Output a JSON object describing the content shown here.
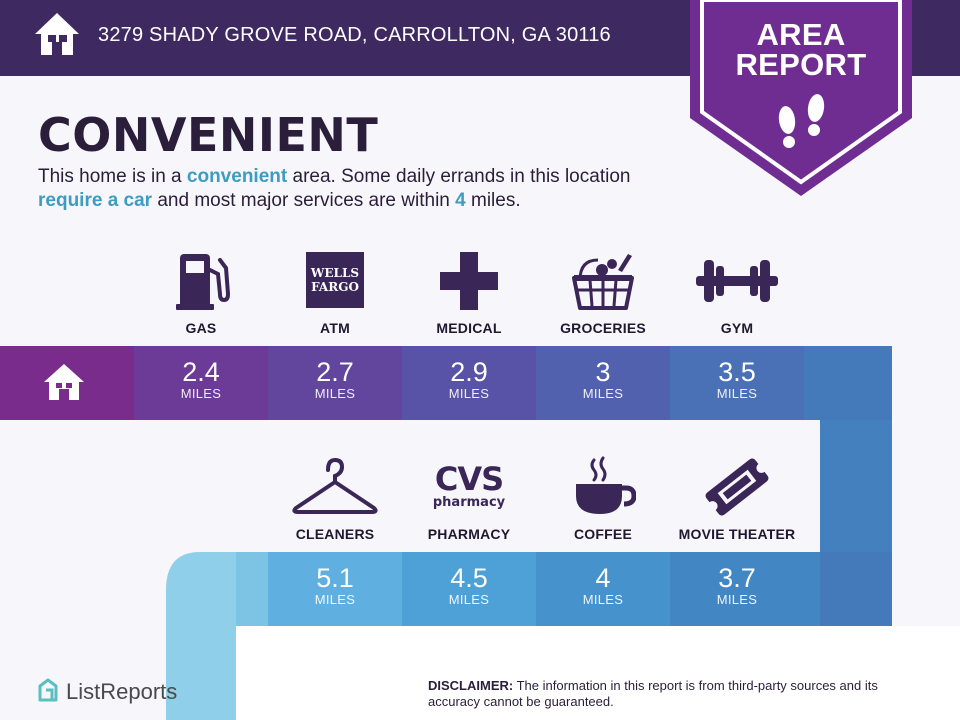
{
  "header": {
    "address": "3279 SHADY GROVE ROAD, CARROLLTON, GA 30116"
  },
  "badge": {
    "line1": "AREA",
    "line2": "REPORT"
  },
  "title": "CONVENIENT",
  "subtitle": {
    "part1": "This home is in a ",
    "highlight1": "convenient",
    "part2": " area. Some daily errands in this location ",
    "highlight2": "require a car",
    "part3": " and most major services are within ",
    "highlight3": "4",
    "part4": " miles."
  },
  "amenities_top": [
    {
      "label": "GAS",
      "icon": "gas-pump-icon"
    },
    {
      "label": "ATM",
      "icon": "wells-fargo-logo",
      "logo_line1": "WELLS",
      "logo_line2": "FARGO"
    },
    {
      "label": "MEDICAL",
      "icon": "medical-cross-icon"
    },
    {
      "label": "GROCERIES",
      "icon": "grocery-basket-icon"
    },
    {
      "label": "GYM",
      "icon": "dumbbell-icon"
    }
  ],
  "distances_top": [
    {
      "value": "2.4",
      "unit": "MILES"
    },
    {
      "value": "2.7",
      "unit": "MILES"
    },
    {
      "value": "2.9",
      "unit": "MILES"
    },
    {
      "value": "3",
      "unit": "MILES"
    },
    {
      "value": "3.5",
      "unit": "MILES"
    }
  ],
  "amenities_bottom": [
    {
      "label": "CLEANERS",
      "icon": "hanger-icon"
    },
    {
      "label": "PHARMACY",
      "icon": "cvs-pharmacy-logo",
      "logo_line1": "CVS",
      "logo_line2": "pharmacy"
    },
    {
      "label": "COFFEE",
      "icon": "coffee-cup-icon"
    },
    {
      "label": "MOVIE THEATER",
      "icon": "movie-ticket-icon"
    }
  ],
  "distances_bottom": [
    {
      "value": "5.1",
      "unit": "MILES"
    },
    {
      "value": "4.5",
      "unit": "MILES"
    },
    {
      "value": "4",
      "unit": "MILES"
    },
    {
      "value": "3.7",
      "unit": "MILES"
    }
  ],
  "footer": {
    "brand": "ListReports",
    "disclaimer_label": "DISCLAIMER:",
    "disclaimer_text": " The information in this report is from third-party sources and its accuracy cannot be guaranteed."
  },
  "colors": {
    "header_bg": "#3e2a60",
    "badge_purple": "#6f2d91",
    "highlight": "#3d9cc0",
    "icon_dark": "#3b2658"
  }
}
